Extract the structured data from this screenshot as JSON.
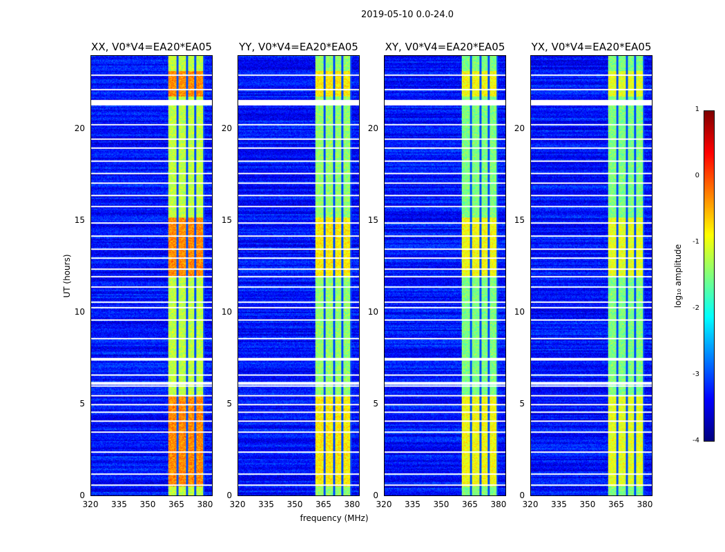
{
  "chart_data": {
    "type": "heatmap",
    "title": "2019-05-10 0.0-24.0",
    "xlabel": "frequency (MHz)",
    "ylabel": "UT (hours)",
    "xlim": [
      320,
      384
    ],
    "ylim": [
      0,
      24
    ],
    "xticks": [
      320,
      335,
      350,
      365,
      380
    ],
    "yticks": [
      0,
      5,
      10,
      15,
      20
    ],
    "panels": [
      {
        "title": "XX, V0*V4=EA20*EA05",
        "band_level": -1.2,
        "peak_level": -0.3
      },
      {
        "title": "YY, V0*V4=EA20*EA05",
        "band_level": -1.4,
        "peak_level": -0.8
      },
      {
        "title": "XY, V0*V4=EA20*EA05",
        "band_level": -1.5,
        "peak_level": -0.9
      },
      {
        "title": "YX, V0*V4=EA20*EA05",
        "band_level": -1.5,
        "peak_level": -1.0
      }
    ],
    "background_level": -3.3,
    "rfi_band_mhz": [
      360.5,
      380
    ],
    "band_gaps_mhz": [
      365.5,
      370.5,
      375,
      379.5
    ],
    "flagged_ut": [
      0.6,
      1.2,
      2.4,
      3.5,
      4.1,
      4.6,
      5.0,
      5.5,
      6.0,
      6.2,
      6.6,
      7.5,
      8.6,
      9.6,
      10.3,
      10.6,
      11.4,
      12.0,
      12.4,
      13.0,
      13.5,
      14.2,
      14.9,
      15.8,
      16.4,
      17.1,
      17.6,
      18.3,
      19.0,
      19.5,
      20.3,
      21.6,
      22.2,
      23.0
    ],
    "colorbar": {
      "label": "log₁₀ amplitude",
      "colormap": "jet",
      "range": [
        -4,
        1
      ],
      "ticks": [
        1,
        0,
        -1,
        -2,
        -3,
        -4
      ]
    }
  }
}
